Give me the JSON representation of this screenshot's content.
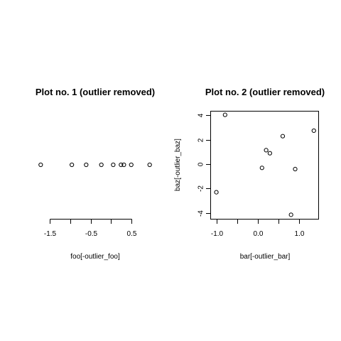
{
  "chart_data": [
    {
      "type": "stripchart",
      "title": "Plot no. 1 (outlier removed)",
      "xlabel": "foo[-outlier_foo]",
      "ylabel": "",
      "xlim": [
        -1.76,
        0.98
      ],
      "x_ticks": [
        {
          "value": -1.5,
          "label": "-1.5"
        },
        {
          "value": -1.0,
          "label": ""
        },
        {
          "value": -0.5,
          "label": "-0.5"
        },
        {
          "value": 0.0,
          "label": ""
        },
        {
          "value": 0.5,
          "label": "0.5"
        }
      ],
      "values": [
        -1.72,
        -0.96,
        -0.61,
        -0.24,
        0.05,
        0.24,
        0.31,
        0.49,
        0.94
      ],
      "box": false
    },
    {
      "type": "scatter",
      "title": "Plot no. 2 (outlier removed)",
      "xlabel": "bar[-outlier_bar]",
      "ylabel": "baz[-outlier_baz]",
      "xlim": [
        -1.05,
        1.36
      ],
      "ylim": [
        -4.15,
        4.05
      ],
      "x_ticks": [
        {
          "value": -1.0,
          "label": "-1.0"
        },
        {
          "value": -0.5,
          "label": ""
        },
        {
          "value": 0.0,
          "label": "0.0"
        },
        {
          "value": 0.5,
          "label": ""
        },
        {
          "value": 1.0,
          "label": "1.0"
        }
      ],
      "y_ticks": [
        {
          "value": -4,
          "label": "-4"
        },
        {
          "value": -2,
          "label": "-2"
        },
        {
          "value": 0,
          "label": "0"
        },
        {
          "value": 2,
          "label": "2"
        },
        {
          "value": 4,
          "label": "4"
        }
      ],
      "points": [
        {
          "x": -1.0,
          "y": -2.3
        },
        {
          "x": -0.79,
          "y": 4.05
        },
        {
          "x": 0.1,
          "y": -0.3
        },
        {
          "x": 0.2,
          "y": 1.15
        },
        {
          "x": 0.29,
          "y": 0.9
        },
        {
          "x": 0.6,
          "y": 2.3
        },
        {
          "x": 0.8,
          "y": -4.15
        },
        {
          "x": 0.9,
          "y": -0.4
        },
        {
          "x": 1.35,
          "y": 2.75
        }
      ],
      "box": true
    }
  ]
}
